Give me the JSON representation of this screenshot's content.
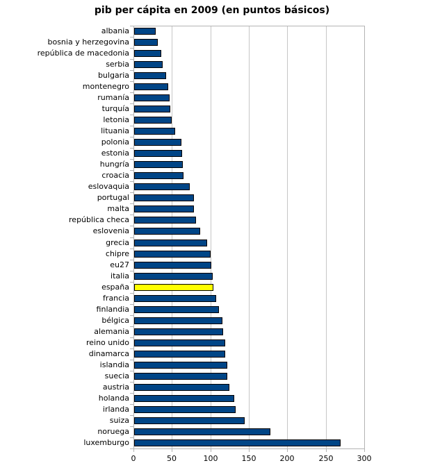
{
  "chart_data": {
    "type": "bar",
    "orientation": "horizontal",
    "title": "pib per cápita en 2009 (en puntos básicos)",
    "categories": [
      "albania",
      "bosnia y herzegovina",
      "república de macedonia",
      "serbia",
      "bulgaria",
      "montenegro",
      "rumanía",
      "turquía",
      "letonia",
      "lituania",
      "polonia",
      "estonia",
      "hungría",
      "croacia",
      "eslovaquia",
      "portugal",
      "malta",
      "república checa",
      "eslovenia",
      "grecia",
      "chipre",
      "eu27",
      "italia",
      "españa",
      "francia",
      "finlandia",
      "bélgica",
      "alemania",
      "reino unido",
      "dinamarca",
      "islandia",
      "suecia",
      "austria",
      "holanda",
      "irlanda",
      "suiza",
      "noruega",
      "luxemburgo"
    ],
    "values": [
      28,
      31,
      35,
      37,
      42,
      44,
      46,
      47,
      49,
      53,
      61,
      62,
      63,
      64,
      72,
      78,
      78,
      80,
      86,
      95,
      99,
      100,
      102,
      103,
      107,
      110,
      115,
      116,
      118,
      118,
      121,
      121,
      124,
      130,
      132,
      144,
      177,
      268
    ],
    "xlabel": "",
    "ylabel": "",
    "xlim": [
      0,
      300
    ],
    "x_ticks": [
      0,
      50,
      100,
      150,
      200,
      250,
      300
    ],
    "grid": true,
    "legend": "none",
    "highlight_category": "españa",
    "bar_color": "#004586",
    "highlight_color": "#ffff00",
    "bar_border_color": "#000000",
    "gridline_color": "#c6c6c6",
    "axis_color": "#b3b3b3"
  }
}
